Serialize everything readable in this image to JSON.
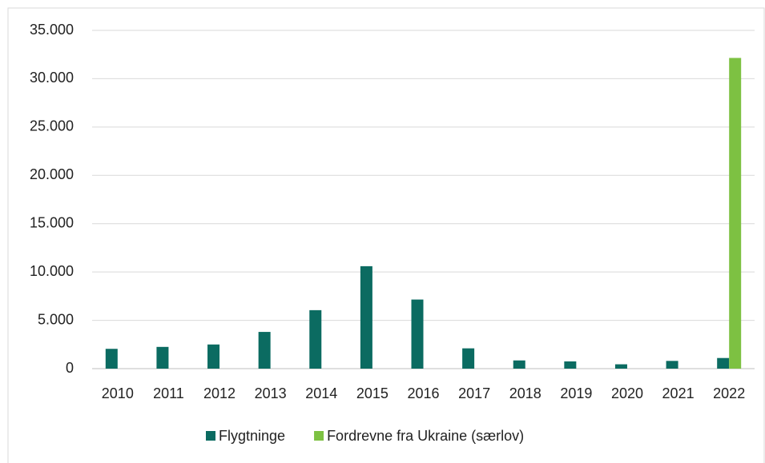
{
  "chart_data": {
    "type": "bar",
    "categories": [
      "2010",
      "2011",
      "2012",
      "2013",
      "2014",
      "2015",
      "2016",
      "2017",
      "2018",
      "2019",
      "2020",
      "2021",
      "2022"
    ],
    "series": [
      {
        "name": "Flygtninge",
        "color": "#0b6b61",
        "values": [
          2050,
          2250,
          2500,
          3800,
          6050,
          10600,
          7150,
          2100,
          850,
          750,
          450,
          800,
          1100
        ]
      },
      {
        "name": "Fordrevne fra Ukraine (særlov)",
        "color": "#7dc142",
        "values": [
          null,
          null,
          null,
          null,
          null,
          null,
          null,
          null,
          null,
          null,
          null,
          null,
          32150
        ]
      }
    ],
    "ylim": [
      0,
      35000
    ],
    "yticks": [
      0,
      {
        "value": 5000,
        "label": "5.000"
      },
      {
        "value": 10000,
        "label": "10.000"
      },
      {
        "value": 15000,
        "label": "15.000"
      },
      {
        "value": 20000,
        "label": "20.000"
      },
      {
        "value": 25000,
        "label": "25.000"
      },
      {
        "value": 30000,
        "label": "30.000"
      },
      {
        "value": 35000,
        "label": "35.000"
      }
    ],
    "grid": true
  }
}
